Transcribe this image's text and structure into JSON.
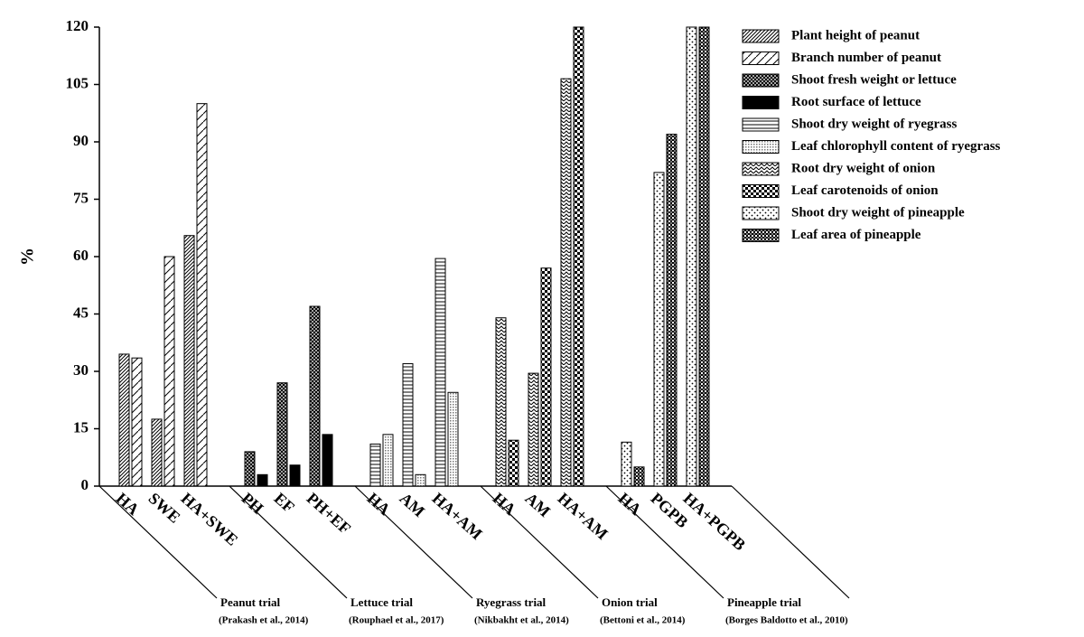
{
  "chart_data": {
    "type": "bar",
    "y_label": "%",
    "categories": [
      "HA",
      "SWE",
      "HA+SWE",
      "PH",
      "EF",
      "PH+EF",
      "HA",
      "AM",
      "HA+AM",
      "HA",
      "AM",
      "HA+AM",
      "HA",
      "PGPB",
      "HA+PGPB"
    ],
    "groups": [
      {
        "label": "Peanut trial",
        "source": "(Prakash et al., 2014)"
      },
      {
        "label": "Lettuce trial",
        "source": "(Rouphael et al., 2017)"
      },
      {
        "label": "Ryegrass trial",
        "source": "(Nikbakht et al., 2014)"
      },
      {
        "label": "Onion trial",
        "source": "(Bettoni et al., 2014)"
      },
      {
        "label": "Pineapple trial",
        "source": "(Borges Baldotto et al., 2010)"
      }
    ],
    "series": [
      {
        "name": "Plant height of peanut",
        "color": "#000000",
        "values": [
          34.5,
          17.5,
          65.5,
          null,
          null,
          null,
          null,
          null,
          null,
          null,
          null,
          null,
          null,
          null,
          null
        ]
      },
      {
        "name": "Branch number of peanut",
        "color": "#000000",
        "values": [
          33.5,
          60,
          100,
          null,
          null,
          null,
          null,
          null,
          null,
          null,
          null,
          null,
          null,
          null,
          null
        ]
      },
      {
        "name": "Shoot fresh weight or lettuce",
        "color": "#000000",
        "values": [
          null,
          null,
          null,
          9,
          27,
          47,
          null,
          null,
          null,
          null,
          null,
          null,
          null,
          null,
          null
        ]
      },
      {
        "name": "Root surface of lettuce",
        "color": "#000000",
        "values": [
          null,
          null,
          null,
          3,
          5.5,
          13.5,
          null,
          null,
          null,
          null,
          null,
          null,
          null,
          null,
          null
        ]
      },
      {
        "name": "Shoot dry weight of ryegrass",
        "color": "#000000",
        "values": [
          null,
          null,
          null,
          null,
          null,
          null,
          11,
          32,
          59.5,
          null,
          null,
          null,
          null,
          null,
          null
        ]
      },
      {
        "name": "Leaf  chlorophyll content of ryegrass",
        "color": "#000000",
        "values": [
          null,
          null,
          null,
          null,
          null,
          null,
          13.5,
          3,
          24.5,
          null,
          null,
          null,
          null,
          null,
          null
        ]
      },
      {
        "name": "Root dry weight of onion",
        "color": "#000000",
        "values": [
          null,
          null,
          null,
          null,
          null,
          null,
          null,
          null,
          null,
          44,
          29.5,
          106.5,
          null,
          null,
          null
        ]
      },
      {
        "name": "Leaf carotenoids of onion",
        "color": "#000000",
        "values": [
          null,
          null,
          null,
          null,
          null,
          null,
          null,
          null,
          null,
          12,
          57,
          120,
          null,
          null,
          null
        ]
      },
      {
        "name": "Shoot dry weight of pineapple",
        "color": "#000000",
        "values": [
          null,
          null,
          null,
          null,
          null,
          null,
          null,
          null,
          null,
          null,
          null,
          null,
          11.5,
          82,
          120
        ]
      },
      {
        "name": "Leaf area of pineapple",
        "color": "#000000",
        "values": [
          null,
          null,
          null,
          null,
          null,
          null,
          null,
          null,
          null,
          null,
          null,
          null,
          5,
          92,
          120
        ]
      }
    ],
    "ylim": [
      0,
      120
    ],
    "yticks": [
      0,
      15,
      30,
      45,
      60,
      75,
      90,
      105,
      120
    ],
    "legend": "top-right"
  }
}
